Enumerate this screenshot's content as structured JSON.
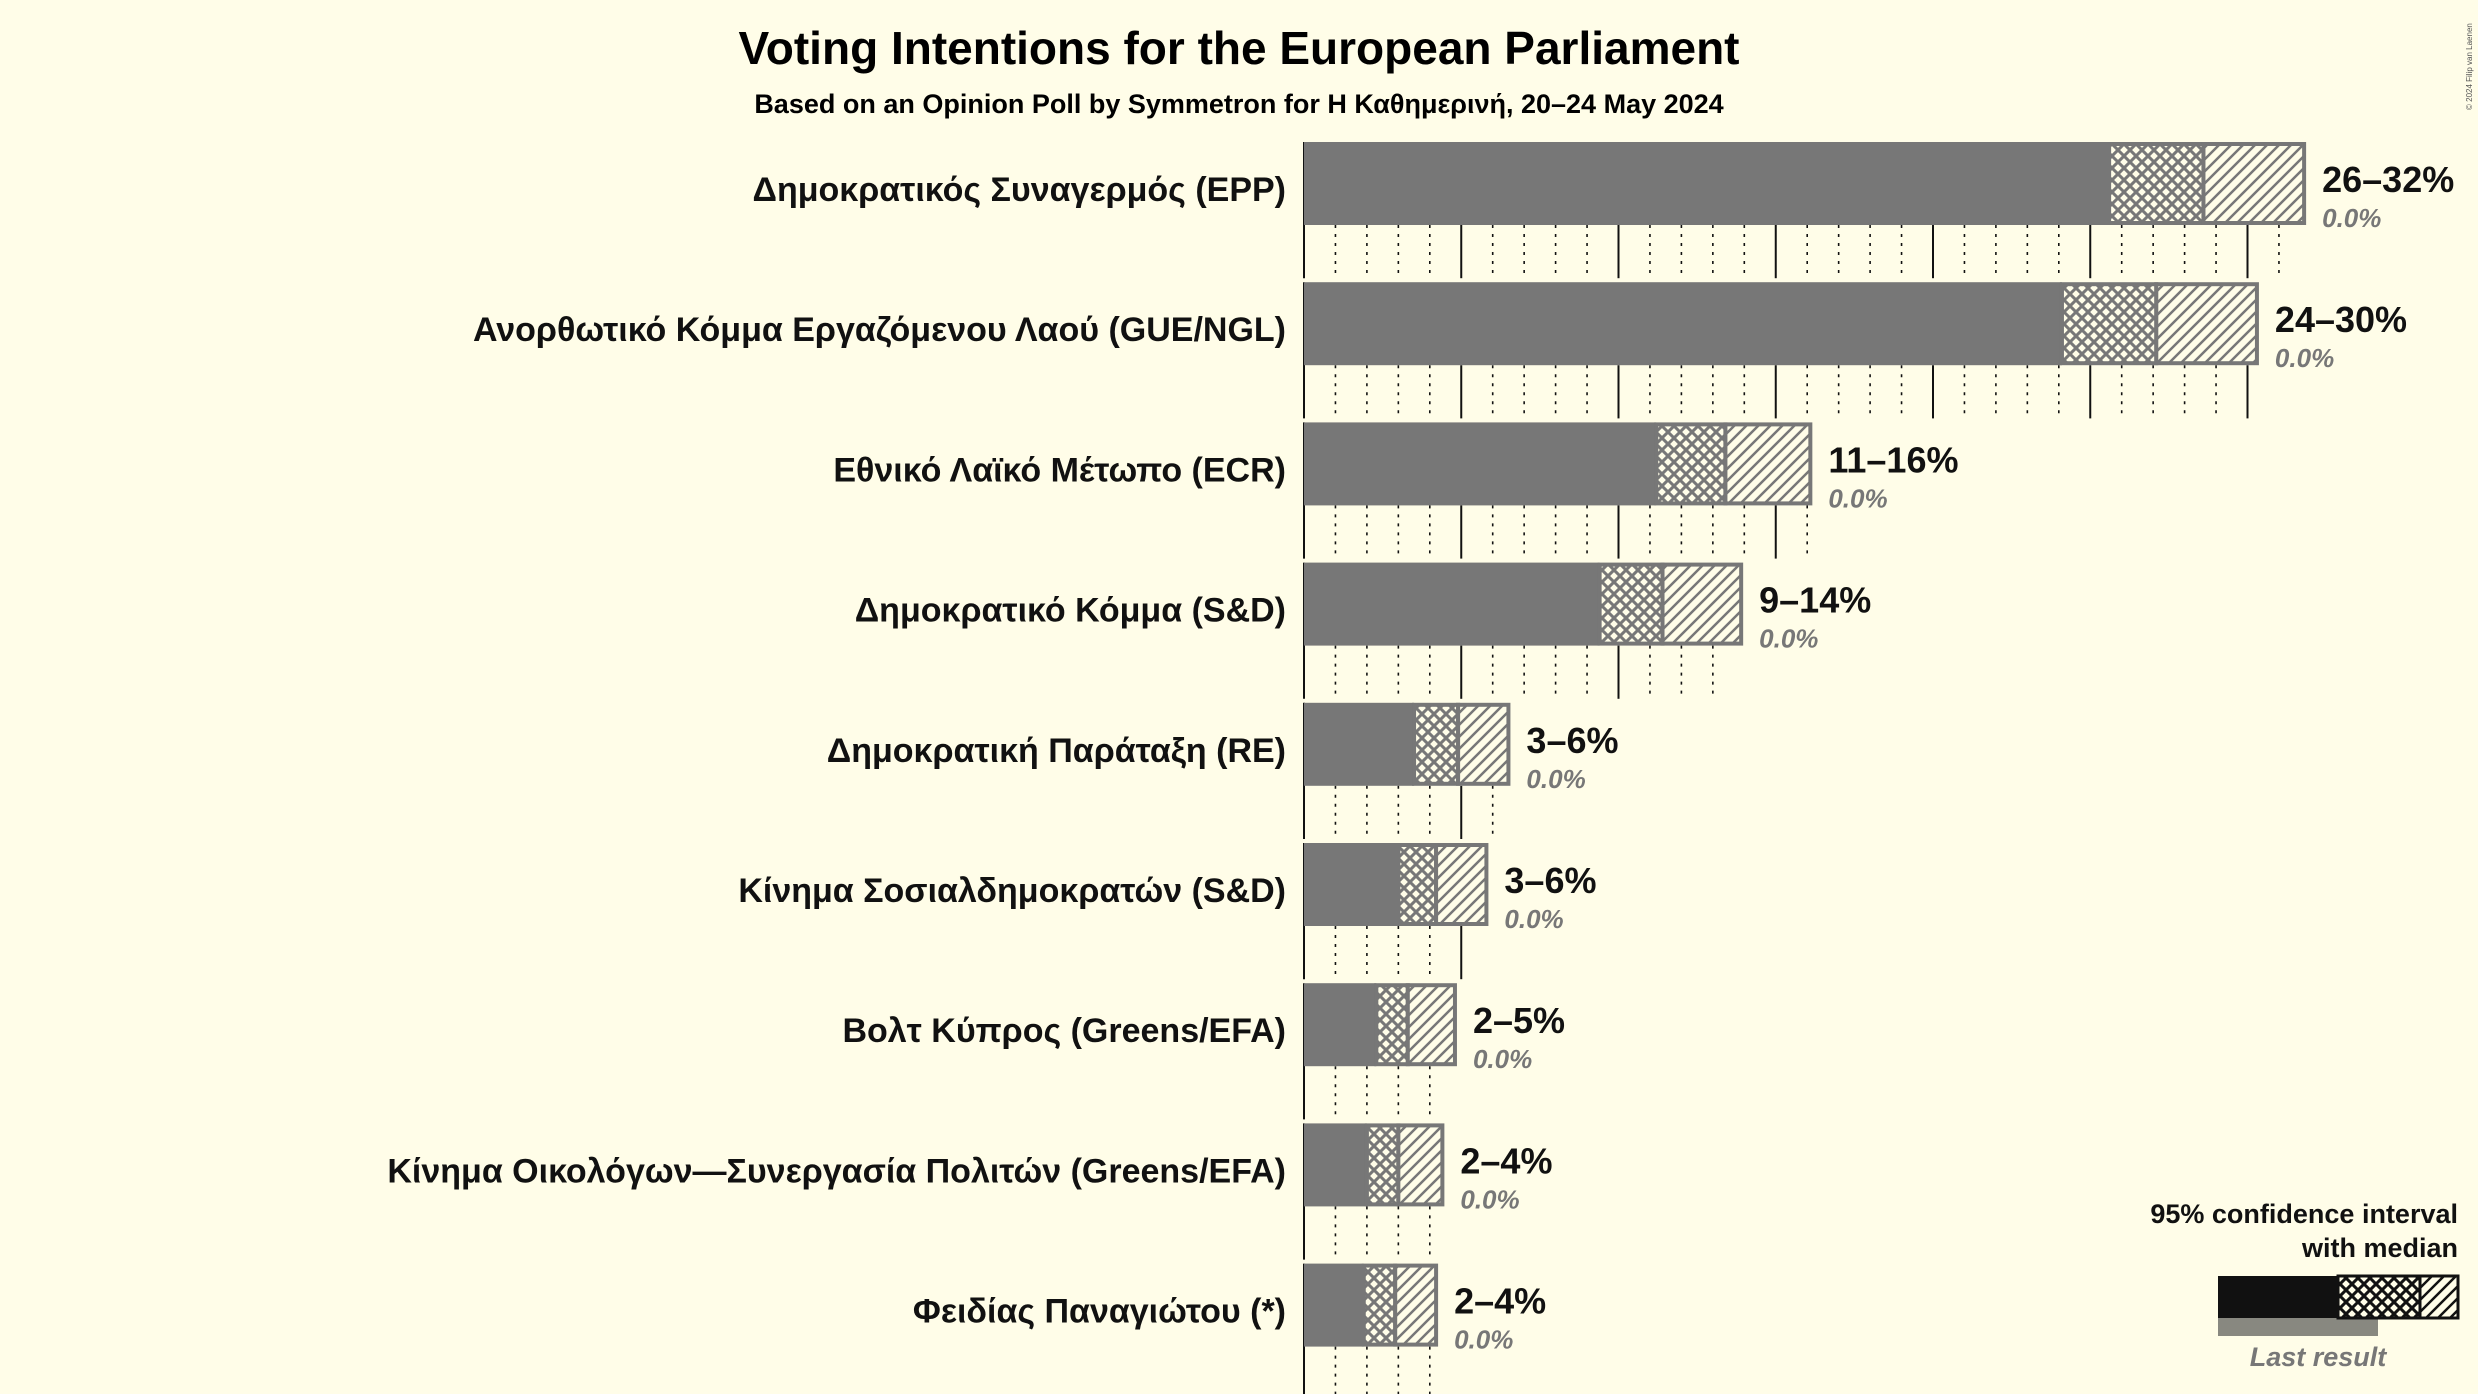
{
  "title": "Voting Intentions for the European Parliament",
  "subtitle": "Based on an Opinion Poll by Symmetron for Η Καθημερινή, 20–24 May 2024",
  "copyright": "© 2024 Filip van Laenen",
  "legend": {
    "line1": "95% confidence interval",
    "line2": "with median",
    "last_result": "Last result"
  },
  "colors": {
    "background": "#FFFDE8",
    "bar": "#777777",
    "legend_dark": "#111111",
    "legend_last": "#888880"
  },
  "chart_data": {
    "type": "bar",
    "orientation": "horizontal",
    "unit": "%",
    "xlim": [
      0,
      32
    ],
    "parties": [
      {
        "name": "Δημοκρατικός Συναγερμός (EPP)",
        "low": 25.6,
        "q1": 25.6,
        "median": 28.6,
        "q3": 31.6,
        "high": 31.8,
        "range_label": "26–32%",
        "last_label": "0.0%",
        "last": 0
      },
      {
        "name": "Ανορθωτικό Κόμμα Εργαζόμενου Λαού (GUE/NGL)",
        "low": 24.1,
        "q1": 24.1,
        "median": 27.1,
        "q3": 30.1,
        "high": 30.3,
        "range_label": "24–30%",
        "last_label": "0.0%",
        "last": 0
      },
      {
        "name": "Εθνικό Λαϊκό Μέτωπο (ECR)",
        "low": 11.2,
        "q1": 11.2,
        "median": 13.4,
        "q3": 15.9,
        "high": 16.1,
        "range_label": "11–16%",
        "last_label": "0.0%",
        "last": 0
      },
      {
        "name": "Δημοκρατικό Κόμμα (S&D)",
        "low": 9.4,
        "q1": 9.4,
        "median": 11.4,
        "q3": 13.8,
        "high": 13.9,
        "range_label": "9–14%",
        "last_label": "0.0%",
        "last": 0
      },
      {
        "name": "Δημοκρατική Παράταξη (RE)",
        "low": 3.5,
        "q1": 3.5,
        "median": 4.9,
        "q3": 6.4,
        "high": 6.5,
        "range_label": "3–6%",
        "last_label": "0.0%",
        "last": 0
      },
      {
        "name": "Κίνημα Σοσιαλδημοκρατών (S&D)",
        "low": 3.0,
        "q1": 3.0,
        "median": 4.2,
        "q3": 5.7,
        "high": 5.8,
        "range_label": "3–6%",
        "last_label": "0.0%",
        "last": 0
      },
      {
        "name": "Βολτ Κύπρος (Greens/EFA)",
        "low": 2.3,
        "q1": 2.3,
        "median": 3.3,
        "q3": 4.7,
        "high": 4.8,
        "range_label": "2–5%",
        "last_label": "0.0%",
        "last": 0
      },
      {
        "name": "Κίνημα Οικολόγων—Συνεργασία Πολιτών (Greens/EFA)",
        "low": 2.0,
        "q1": 2.0,
        "median": 3.0,
        "q3": 4.3,
        "high": 4.4,
        "range_label": "2–4%",
        "last_label": "0.0%",
        "last": 0
      },
      {
        "name": "Φειδίας Παναγιώτου (*)",
        "low": 1.9,
        "q1": 1.9,
        "median": 2.9,
        "q3": 4.1,
        "high": 4.2,
        "range_label": "2–4%",
        "last_label": "0.0%",
        "last": 0
      }
    ]
  }
}
